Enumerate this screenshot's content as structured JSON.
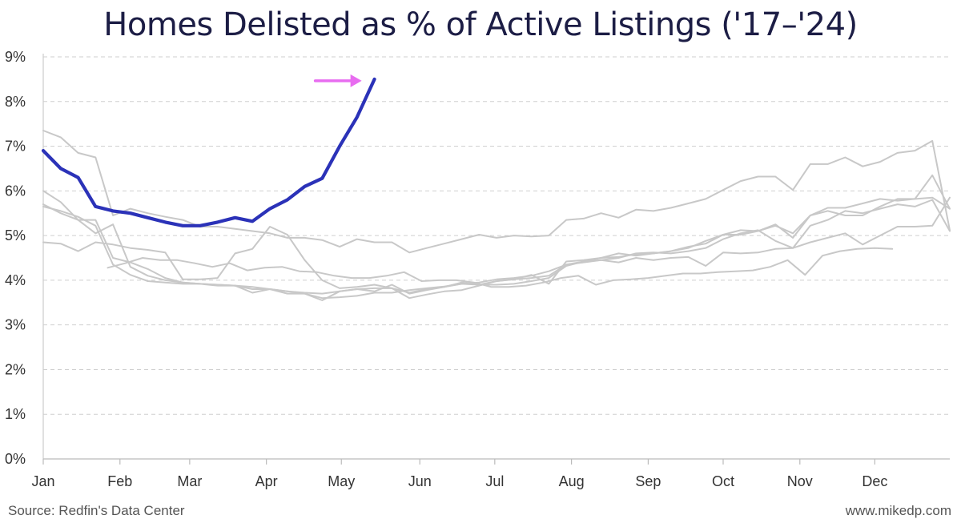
{
  "title": "Homes Delisted as % of Active Listings ('17–'24)",
  "source": "Source: Redfin's Data Center",
  "site": "www.mikedp.com",
  "colors": {
    "highlight": "#2b32b8",
    "history": "#c8c8c8",
    "arrow": "#e86cf0",
    "grid": "#cfcfcf"
  },
  "chart_data": {
    "type": "line",
    "title": "Homes Delisted as % of Active Listings ('17–'24)",
    "x_unit": "week of year (0 = Jan 1)",
    "xlim": [
      0,
      52
    ],
    "ylim": [
      0,
      9
    ],
    "y_ticks": [
      "0%",
      "1%",
      "2%",
      "3%",
      "4%",
      "5%",
      "6%",
      "7%",
      "8%",
      "9%"
    ],
    "x_ticks": [
      {
        "label": "Jan",
        "x": 0
      },
      {
        "label": "Feb",
        "x": 4.4
      },
      {
        "label": "Mar",
        "x": 8.4
      },
      {
        "label": "Apr",
        "x": 12.8
      },
      {
        "label": "May",
        "x": 17.1
      },
      {
        "label": "Jun",
        "x": 21.6
      },
      {
        "label": "Jul",
        "x": 25.9
      },
      {
        "label": "Aug",
        "x": 30.3
      },
      {
        "label": "Sep",
        "x": 34.7
      },
      {
        "label": "Oct",
        "x": 39.0
      },
      {
        "label": "Nov",
        "x": 43.4
      },
      {
        "label": "Dec",
        "x": 47.7
      }
    ],
    "grid": true,
    "legend": "none",
    "annotation": "arrow pointing to latest 2024 value",
    "series": [
      {
        "highlight": true,
        "start": 0,
        "values": [
          6.9,
          6.5,
          6.3,
          5.65,
          5.55,
          5.5,
          5.4,
          5.3,
          5.22,
          5.22,
          5.3,
          5.4,
          5.32,
          5.6,
          5.8,
          6.1,
          6.28,
          7.0,
          7.65,
          8.5
        ]
      },
      {
        "start": 0,
        "values": [
          7.35,
          7.2,
          6.85,
          6.75,
          5.45,
          5.6,
          5.5,
          5.42,
          5.35,
          5.2,
          5.2,
          5.15,
          5.1,
          5.05,
          4.95,
          4.95,
          4.9,
          4.75,
          4.92,
          4.85,
          4.85,
          4.62,
          4.72,
          4.82,
          4.92,
          5.02,
          4.95,
          5.0,
          4.98,
          5.0,
          5.35,
          5.38,
          5.5,
          5.4,
          5.58,
          5.55,
          5.62,
          5.72,
          5.82,
          6.02,
          6.22,
          6.32,
          6.32,
          6.02,
          6.6,
          6.6,
          6.75,
          6.55,
          6.65,
          6.85,
          6.9,
          7.12,
          5.12
        ]
      },
      {
        "start": 0,
        "values": [
          5.7,
          5.5,
          5.35,
          5.35,
          4.5,
          4.4,
          4.25,
          4.05,
          3.95,
          3.92,
          3.88,
          3.88,
          3.72,
          3.8,
          3.7,
          3.7,
          3.55,
          3.75,
          3.8,
          3.75,
          3.9,
          3.7,
          3.78,
          3.85,
          3.95,
          3.9,
          3.98,
          4.02,
          4.12,
          3.92,
          4.42,
          4.45,
          4.5,
          4.6,
          4.55,
          4.6,
          4.65,
          4.75,
          4.82,
          5.02,
          5.02,
          5.1,
          5.25,
          4.95,
          5.45,
          5.62,
          5.62,
          5.72,
          5.82,
          5.78,
          5.82,
          5.85,
          5.6
        ]
      },
      {
        "start": 0,
        "values": [
          5.65,
          5.55,
          5.42,
          5.22,
          4.35,
          4.12,
          3.98,
          3.95,
          3.92,
          3.92,
          3.9,
          3.88,
          3.8,
          3.8,
          3.75,
          3.7,
          3.6,
          3.62,
          3.65,
          3.72,
          3.72,
          3.78,
          3.82,
          3.86,
          3.92,
          3.95,
          4.02,
          4.05,
          4.1,
          4.2,
          4.35,
          4.42,
          4.5,
          4.52,
          4.58,
          4.6,
          4.65,
          4.72,
          4.88,
          5.02,
          5.12,
          5.1,
          5.22,
          5.05,
          5.45,
          5.55,
          5.45,
          5.45,
          5.65,
          5.82,
          5.82,
          6.35,
          5.6
        ]
      },
      {
        "start": 0,
        "values": [
          6.0,
          5.75,
          5.35,
          5.05,
          5.25,
          4.3,
          4.1,
          4.0,
          3.95,
          3.92,
          3.9,
          3.88,
          3.85,
          3.8,
          3.75,
          3.72,
          3.7,
          3.75,
          3.8,
          3.82,
          3.82,
          3.72,
          3.8,
          3.85,
          3.92,
          3.9,
          3.9,
          3.92,
          3.98,
          4.05,
          4.32,
          4.42,
          4.45,
          4.5,
          4.6,
          4.62,
          4.6,
          4.65,
          4.72,
          4.92,
          5.05,
          5.12,
          4.88,
          4.72,
          5.22,
          5.35,
          5.55,
          5.5,
          5.6,
          5.7,
          5.65,
          5.8,
          5.1
        ]
      },
      {
        "start": 0,
        "values": [
          4.85,
          4.82,
          4.65,
          4.85,
          4.8,
          4.72,
          4.68,
          4.62,
          4.02,
          4.02,
          4.05,
          4.6,
          4.7,
          5.2,
          5.02,
          4.45,
          4.0,
          3.82,
          3.85,
          3.9,
          3.82,
          3.6,
          3.68,
          3.75,
          3.78,
          3.88,
          3.98,
          4.02,
          4.05,
          4.1,
          4.35,
          4.4,
          4.45,
          4.4,
          4.5,
          4.45,
          4.5,
          4.52,
          4.32,
          4.62,
          4.6,
          4.62,
          4.7,
          4.72,
          4.85,
          4.95,
          5.05,
          4.8,
          5.0,
          5.2,
          5.2,
          5.22,
          5.85
        ]
      },
      {
        "start": 3.7,
        "values": [
          4.28,
          4.38,
          4.5,
          4.45,
          4.45,
          4.38,
          4.3,
          4.38,
          4.22,
          4.28,
          4.3,
          4.2,
          4.18,
          4.1,
          4.05,
          4.05,
          4.1,
          4.18,
          3.98,
          4.0,
          4.0,
          3.95,
          3.85,
          3.85,
          3.88,
          3.95,
          4.05,
          4.1,
          3.9,
          4.0,
          4.02,
          4.05,
          4.1,
          4.15,
          4.15,
          4.18,
          4.2,
          4.22,
          4.3,
          4.45,
          4.12,
          4.55,
          4.65,
          4.7,
          4.72,
          4.7
        ]
      }
    ]
  }
}
